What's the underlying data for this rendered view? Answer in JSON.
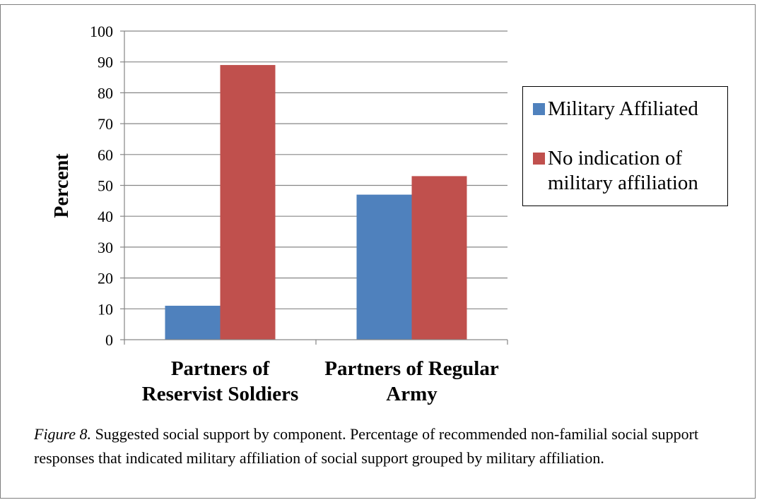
{
  "chart_data": {
    "type": "bar",
    "categories": [
      "Partners of Reservist Soldiers",
      "Partners of Regular Army"
    ],
    "category_lines": [
      [
        "Partners of",
        "Reservist Soldiers"
      ],
      [
        "Partners of Regular",
        "Army"
      ]
    ],
    "series": [
      {
        "name": "Military Affiliated",
        "values": [
          11,
          47
        ],
        "color": "#4f81bd"
      },
      {
        "name": "No indication of military affiliation",
        "values": [
          89,
          53
        ],
        "color": "#c0504d"
      }
    ],
    "ylabel": "Percent",
    "ylim": [
      0,
      100
    ],
    "yticks": [
      0,
      10,
      20,
      30,
      40,
      50,
      60,
      70,
      80,
      90,
      100
    ],
    "grid": true,
    "legend_position": "right"
  },
  "legend": {
    "items": [
      {
        "label": "Military Affiliated",
        "color": "#4f81bd"
      },
      {
        "label": "No indication of military affiliation",
        "color": "#c0504d"
      }
    ]
  },
  "caption": {
    "figure_label": "Figure 8.",
    "text": " Suggested social support by component. Percentage of recommended non-familial social support responses that indicated military affiliation of social support grouped by military affiliation."
  }
}
